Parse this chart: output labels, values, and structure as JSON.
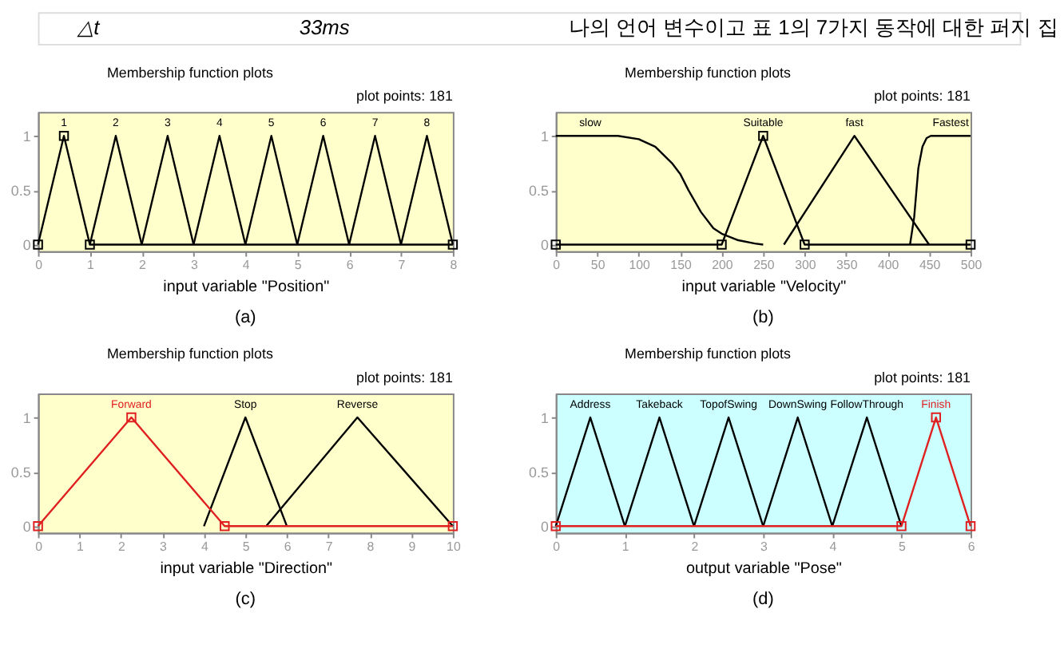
{
  "chart_data": [
    {
      "type": "other",
      "annotations": [
        "△t",
        "33ms",
        "나의 언어 변수이고 표 1의 7가지 동작에 대한 퍼지 집"
      ]
    },
    {
      "type": "line",
      "title": "Membership function plots",
      "xlabel": "input variable \"Position\"",
      "annotations": [
        "plot points: 181",
        "(a)"
      ],
      "xlim": [
        0,
        8
      ],
      "xticks": [
        0,
        1,
        2,
        3,
        4,
        5,
        6,
        7,
        8
      ],
      "ylim": [
        -0.06,
        1.22
      ],
      "yticks": [
        0,
        0.5,
        1
      ],
      "grid": false,
      "marker": "none",
      "series": [
        {
          "name": "1",
          "color": "#000000",
          "x": [
            0,
            0.5,
            1,
            8
          ],
          "values": [
            0,
            1,
            0,
            0
          ],
          "marker": "square"
        },
        {
          "name": "2",
          "color": "#000000",
          "x": [
            1,
            1.5,
            2
          ],
          "values": [
            0,
            1,
            0
          ]
        },
        {
          "name": "3",
          "color": "#000000",
          "x": [
            2,
            2.5,
            3
          ],
          "values": [
            0,
            1,
            0
          ]
        },
        {
          "name": "4",
          "color": "#000000",
          "x": [
            3,
            3.5,
            4
          ],
          "values": [
            0,
            1,
            0
          ]
        },
        {
          "name": "5",
          "color": "#000000",
          "x": [
            4,
            4.5,
            5
          ],
          "values": [
            0,
            1,
            0
          ]
        },
        {
          "name": "6",
          "color": "#000000",
          "x": [
            5,
            5.5,
            6
          ],
          "values": [
            0,
            1,
            0
          ]
        },
        {
          "name": "7",
          "color": "#000000",
          "x": [
            6,
            6.5,
            7
          ],
          "values": [
            0,
            1,
            0
          ]
        },
        {
          "name": "8",
          "color": "#000000",
          "x": [
            7,
            7.5,
            8
          ],
          "values": [
            0,
            1,
            0
          ]
        }
      ]
    },
    {
      "type": "line",
      "title": "Membership function plots",
      "xlabel": "input variable \"Velocity\"",
      "annotations": [
        "plot points: 181",
        "(b)"
      ],
      "xlim": [
        0,
        500
      ],
      "xticks": [
        0,
        50,
        100,
        150,
        200,
        250,
        300,
        350,
        400,
        450,
        500
      ],
      "ylim": [
        -0.06,
        1.22
      ],
      "yticks": [
        0,
        0.5,
        1
      ],
      "grid": false,
      "marker": "none",
      "series": [
        {
          "name": "slow",
          "color": "#000000",
          "x": [
            0,
            50,
            75,
            100,
            120,
            140,
            150,
            160,
            175,
            190,
            200,
            220,
            240,
            250
          ],
          "values": [
            1,
            1,
            1,
            0.97,
            0.9,
            0.75,
            0.65,
            0.5,
            0.3,
            0.15,
            0.1,
            0.04,
            0.01,
            0
          ]
        },
        {
          "name": "Suitable",
          "color": "#000000",
          "x": [
            0,
            200,
            250,
            300,
            500
          ],
          "values": [
            0,
            0,
            1,
            0,
            0
          ],
          "marker": "square"
        },
        {
          "name": "fast",
          "color": "#000000",
          "x": [
            275,
            360,
            450
          ],
          "values": [
            0,
            1,
            0
          ]
        },
        {
          "name": "Fastest",
          "color": "#000000",
          "x": [
            427,
            432,
            437,
            442,
            447,
            452,
            500
          ],
          "values": [
            0,
            0.25,
            0.7,
            0.9,
            0.98,
            1,
            1
          ]
        }
      ]
    },
    {
      "type": "line",
      "title": "Membership function plots",
      "xlabel": "input variable \"Direction\"",
      "annotations": [
        "plot points: 181",
        "(c)"
      ],
      "xlim": [
        0,
        10
      ],
      "xticks": [
        0,
        1,
        2,
        3,
        4,
        5,
        6,
        7,
        8,
        9,
        10
      ],
      "ylim": [
        -0.06,
        1.22
      ],
      "yticks": [
        0,
        0.5,
        1
      ],
      "grid": false,
      "marker": "none",
      "series": [
        {
          "name": "Stop",
          "color": "#000000",
          "x": [
            4,
            5,
            6
          ],
          "values": [
            0,
            1,
            0
          ]
        },
        {
          "name": "Reverse",
          "color": "#000000",
          "x": [
            5.5,
            7.7,
            10
          ],
          "values": [
            0,
            1,
            0
          ]
        },
        {
          "name": "Forward",
          "color": "#e02020",
          "x": [
            0,
            2.25,
            4.5,
            10
          ],
          "values": [
            0,
            1,
            0,
            0
          ],
          "marker": "square"
        }
      ]
    },
    {
      "type": "line",
      "title": "Membership function plots",
      "xlabel": "output variable \"Pose\"",
      "annotations": [
        "plot points: 181",
        "(d)"
      ],
      "xlim": [
        0,
        6
      ],
      "xticks": [
        0,
        1,
        2,
        3,
        4,
        5,
        6
      ],
      "ylim": [
        -0.06,
        1.22
      ],
      "yticks": [
        0,
        0.5,
        1
      ],
      "grid": false,
      "marker": "none",
      "series": [
        {
          "name": "Address",
          "color": "#000000",
          "x": [
            0,
            0.5,
            1
          ],
          "values": [
            0,
            1,
            0
          ]
        },
        {
          "name": "Takeback",
          "color": "#000000",
          "x": [
            1,
            1.5,
            2
          ],
          "values": [
            0,
            1,
            0
          ]
        },
        {
          "name": "TopofSwing",
          "color": "#000000",
          "x": [
            2,
            2.5,
            3
          ],
          "values": [
            0,
            1,
            0
          ]
        },
        {
          "name": "DownSwing",
          "color": "#000000",
          "x": [
            3,
            3.5,
            4
          ],
          "values": [
            0,
            1,
            0
          ]
        },
        {
          "name": "FollowThrough",
          "color": "#000000",
          "x": [
            4,
            4.5,
            5
          ],
          "values": [
            0,
            1,
            0
          ]
        },
        {
          "name": "Finish",
          "color": "#e02020",
          "x": [
            0,
            5,
            5.5,
            6
          ],
          "values": [
            0,
            0,
            1,
            0
          ],
          "marker": "square"
        }
      ]
    }
  ]
}
